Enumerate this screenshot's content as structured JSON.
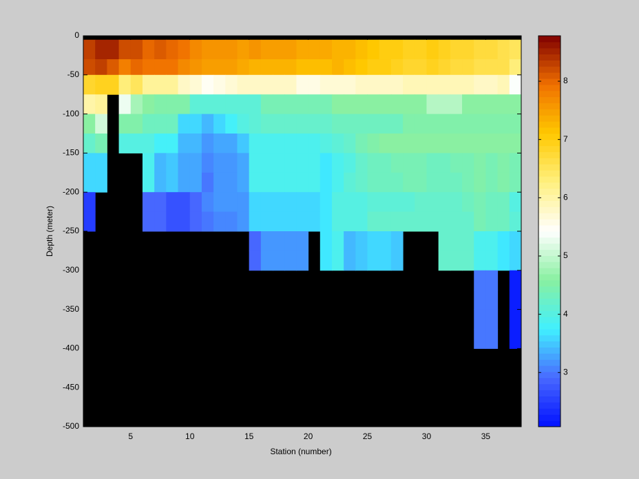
{
  "chart_data": {
    "type": "heatmap",
    "xlabel": "Station (number)",
    "ylabel": "Depth (meter)",
    "xlim": [
      1,
      38
    ],
    "ylim": [
      -500,
      0
    ],
    "xticks": [
      5,
      10,
      15,
      20,
      25,
      30,
      35
    ],
    "yticks": [
      0,
      -50,
      -100,
      -150,
      -200,
      -250,
      -300,
      -350,
      -400,
      -450,
      -500
    ],
    "x_edges": [
      1,
      2,
      3,
      4,
      5,
      6,
      7,
      8,
      9,
      10,
      11,
      12,
      13,
      14,
      15,
      16,
      17,
      18,
      19,
      20,
      21,
      22,
      23,
      24,
      25,
      26,
      27,
      28,
      29,
      30,
      31,
      32,
      33,
      34,
      35,
      36,
      37,
      38
    ],
    "y_edges": [
      0,
      -5,
      -30,
      -50,
      -75,
      -100,
      -125,
      -150,
      -175,
      -200,
      -225,
      -250,
      -275,
      -300,
      -325,
      -350,
      -375,
      -400,
      -425,
      -450,
      -475,
      -500
    ],
    "values": [
      [
        null,
        null,
        null,
        null,
        null,
        null,
        null,
        null,
        null,
        null,
        null,
        null,
        null,
        null,
        null,
        null,
        null,
        null,
        null,
        null,
        null,
        null,
        null,
        null,
        null,
        null,
        null,
        null,
        null,
        null,
        null,
        null,
        null,
        null,
        null,
        null,
        null
      ],
      [
        8.3,
        8.5,
        8.5,
        8.2,
        8.2,
        8.0,
        8.1,
        8.0,
        7.9,
        7.7,
        7.6,
        7.6,
        7.6,
        7.5,
        7.6,
        7.5,
        7.5,
        7.5,
        7.4,
        7.4,
        7.4,
        7.3,
        7.3,
        7.2,
        7.1,
        7.0,
        7.0,
        6.9,
        6.9,
        7.0,
        6.9,
        6.8,
        6.8,
        6.7,
        6.7,
        6.6,
        6.5
      ],
      [
        8.2,
        8.3,
        8.1,
        7.8,
        8.0,
        7.9,
        7.9,
        7.9,
        7.7,
        7.6,
        7.5,
        7.5,
        7.5,
        7.4,
        7.3,
        7.3,
        7.3,
        7.3,
        7.2,
        7.2,
        7.2,
        7.3,
        7.2,
        7.1,
        7.0,
        7.0,
        6.9,
        6.8,
        6.8,
        6.9,
        6.8,
        6.7,
        6.7,
        6.6,
        6.6,
        6.6,
        6.3
      ],
      [
        6.8,
        6.9,
        6.9,
        6.3,
        6.5,
        6.1,
        6.1,
        6.1,
        5.8,
        5.7,
        5.5,
        5.6,
        5.7,
        5.8,
        5.8,
        5.8,
        5.8,
        5.8,
        5.6,
        5.6,
        5.7,
        5.7,
        5.7,
        5.8,
        5.8,
        5.8,
        5.8,
        5.9,
        5.9,
        5.9,
        5.9,
        5.9,
        5.9,
        5.8,
        5.8,
        5.9,
        5.4
      ],
      [
        6.0,
        6.1,
        null,
        5.3,
        4.8,
        4.6,
        4.5,
        4.5,
        4.5,
        4.1,
        4.1,
        4.1,
        4.1,
        4.1,
        4.1,
        4.4,
        4.4,
        4.4,
        4.4,
        4.4,
        4.4,
        4.6,
        4.6,
        4.6,
        4.6,
        4.6,
        4.6,
        4.6,
        4.6,
        4.9,
        4.9,
        4.9,
        4.6,
        4.6,
        4.6,
        4.6,
        4.6
      ],
      [
        4.6,
        5.1,
        null,
        4.5,
        4.5,
        4.3,
        4.3,
        4.3,
        3.6,
        3.6,
        3.4,
        3.6,
        3.8,
        4.0,
        4.1,
        4.2,
        4.2,
        4.2,
        4.2,
        4.2,
        4.2,
        4.3,
        4.3,
        4.3,
        4.3,
        4.3,
        4.3,
        4.5,
        4.5,
        4.5,
        4.5,
        4.5,
        4.5,
        4.5,
        4.5,
        4.5,
        4.5
      ],
      [
        4.2,
        4.4,
        null,
        4.0,
        4.0,
        4.0,
        3.8,
        3.8,
        3.4,
        3.4,
        3.2,
        3.3,
        3.3,
        3.5,
        3.9,
        3.9,
        3.9,
        3.9,
        3.9,
        3.9,
        4.0,
        4.1,
        4.2,
        4.4,
        4.5,
        4.6,
        4.6,
        4.6,
        4.6,
        4.6,
        4.6,
        4.6,
        4.6,
        4.6,
        4.6,
        4.6,
        4.6
      ],
      [
        3.6,
        3.6,
        null,
        null,
        null,
        3.9,
        3.4,
        3.5,
        3.3,
        3.3,
        3.1,
        3.2,
        3.2,
        3.3,
        3.9,
        3.9,
        3.9,
        3.9,
        3.9,
        3.9,
        3.7,
        3.9,
        4.0,
        4.2,
        4.3,
        4.3,
        4.4,
        4.4,
        4.4,
        4.3,
        4.3,
        4.4,
        4.4,
        4.5,
        4.4,
        4.5,
        4.4
      ],
      [
        3.6,
        3.6,
        null,
        null,
        null,
        3.9,
        3.4,
        3.5,
        3.3,
        3.3,
        3.0,
        3.2,
        3.2,
        3.3,
        3.9,
        3.9,
        3.9,
        3.9,
        3.9,
        3.9,
        3.7,
        3.9,
        4.1,
        4.2,
        4.3,
        4.3,
        4.3,
        4.4,
        4.4,
        4.3,
        4.3,
        4.3,
        4.4,
        4.5,
        4.4,
        4.5,
        4.4
      ],
      [
        2.5,
        null,
        null,
        null,
        null,
        2.9,
        2.9,
        2.7,
        2.7,
        2.9,
        3.1,
        3.2,
        3.2,
        3.2,
        3.6,
        3.6,
        3.6,
        3.6,
        3.6,
        3.6,
        3.7,
        4.0,
        4.0,
        4.0,
        4.1,
        4.1,
        4.1,
        4.1,
        4.2,
        4.2,
        4.2,
        4.2,
        4.3,
        4.4,
        4.3,
        4.3,
        4.0
      ],
      [
        2.5,
        null,
        null,
        null,
        null,
        2.9,
        2.9,
        2.7,
        2.7,
        2.9,
        3.0,
        3.1,
        3.1,
        3.2,
        3.6,
        3.6,
        3.6,
        3.6,
        3.6,
        3.6,
        3.7,
        4.0,
        4.0,
        4.0,
        4.2,
        4.2,
        4.2,
        4.2,
        4.2,
        4.2,
        4.2,
        4.2,
        4.2,
        4.4,
        4.3,
        4.3,
        4.1
      ],
      [
        null,
        null,
        null,
        null,
        null,
        null,
        null,
        null,
        null,
        null,
        null,
        null,
        null,
        null,
        2.9,
        3.2,
        3.2,
        3.2,
        3.2,
        null,
        3.7,
        3.9,
        3.4,
        3.5,
        3.6,
        3.6,
        3.5,
        null,
        null,
        null,
        4.2,
        4.2,
        4.2,
        3.9,
        3.9,
        3.7,
        3.6
      ],
      [
        null,
        null,
        null,
        null,
        null,
        null,
        null,
        null,
        null,
        null,
        null,
        null,
        null,
        null,
        2.9,
        3.2,
        3.2,
        3.2,
        3.2,
        null,
        3.7,
        3.9,
        3.4,
        3.5,
        3.6,
        3.6,
        3.5,
        null,
        null,
        null,
        4.2,
        4.2,
        4.2,
        3.9,
        3.9,
        3.7,
        3.6
      ],
      [
        null,
        null,
        null,
        null,
        null,
        null,
        null,
        null,
        null,
        null,
        null,
        null,
        null,
        null,
        null,
        null,
        null,
        null,
        null,
        null,
        null,
        null,
        null,
        null,
        null,
        null,
        null,
        null,
        null,
        null,
        null,
        null,
        null,
        3.0,
        3.0,
        null,
        2.2
      ],
      [
        null,
        null,
        null,
        null,
        null,
        null,
        null,
        null,
        null,
        null,
        null,
        null,
        null,
        null,
        null,
        null,
        null,
        null,
        null,
        null,
        null,
        null,
        null,
        null,
        null,
        null,
        null,
        null,
        null,
        null,
        null,
        null,
        null,
        3.0,
        3.0,
        null,
        2.2
      ],
      [
        null,
        null,
        null,
        null,
        null,
        null,
        null,
        null,
        null,
        null,
        null,
        null,
        null,
        null,
        null,
        null,
        null,
        null,
        null,
        null,
        null,
        null,
        null,
        null,
        null,
        null,
        null,
        null,
        null,
        null,
        null,
        null,
        null,
        3.0,
        3.0,
        null,
        2.2
      ],
      [
        null,
        null,
        null,
        null,
        null,
        null,
        null,
        null,
        null,
        null,
        null,
        null,
        null,
        null,
        null,
        null,
        null,
        null,
        null,
        null,
        null,
        null,
        null,
        null,
        null,
        null,
        null,
        null,
        null,
        null,
        null,
        null,
        null,
        3.0,
        3.0,
        null,
        2.2
      ],
      [
        null,
        null,
        null,
        null,
        null,
        null,
        null,
        null,
        null,
        null,
        null,
        null,
        null,
        null,
        null,
        null,
        null,
        null,
        null,
        null,
        null,
        null,
        null,
        null,
        null,
        null,
        null,
        null,
        null,
        null,
        null,
        null,
        null,
        null,
        null,
        null,
        null
      ],
      [
        null,
        null,
        null,
        null,
        null,
        null,
        null,
        null,
        null,
        null,
        null,
        null,
        null,
        null,
        null,
        null,
        null,
        null,
        null,
        null,
        null,
        null,
        null,
        null,
        null,
        null,
        null,
        null,
        null,
        null,
        null,
        null,
        null,
        null,
        null,
        null,
        null
      ],
      [
        null,
        null,
        null,
        null,
        null,
        null,
        null,
        null,
        null,
        null,
        null,
        null,
        null,
        null,
        null,
        null,
        null,
        null,
        null,
        null,
        null,
        null,
        null,
        null,
        null,
        null,
        null,
        null,
        null,
        null,
        null,
        null,
        null,
        null,
        null,
        null,
        null
      ],
      [
        null,
        null,
        null,
        null,
        null,
        null,
        null,
        null,
        null,
        null,
        null,
        null,
        null,
        null,
        null,
        null,
        null,
        null,
        null,
        null,
        null,
        null,
        null,
        null,
        null,
        null,
        null,
        null,
        null,
        null,
        null,
        null,
        null,
        null,
        null,
        null,
        null
      ]
    ],
    "nan_color": "#000000",
    "colormap": [
      "#0010ff",
      "#4868ff",
      "#40f0ff",
      "#88f0a0",
      "#ffffff",
      "#fff080",
      "#ffc800",
      "#f07000",
      "#800000"
    ],
    "clim": [
      2.07,
      8.78
    ],
    "colorbar_ticks": [
      3,
      4,
      5,
      6,
      7,
      8
    ]
  }
}
